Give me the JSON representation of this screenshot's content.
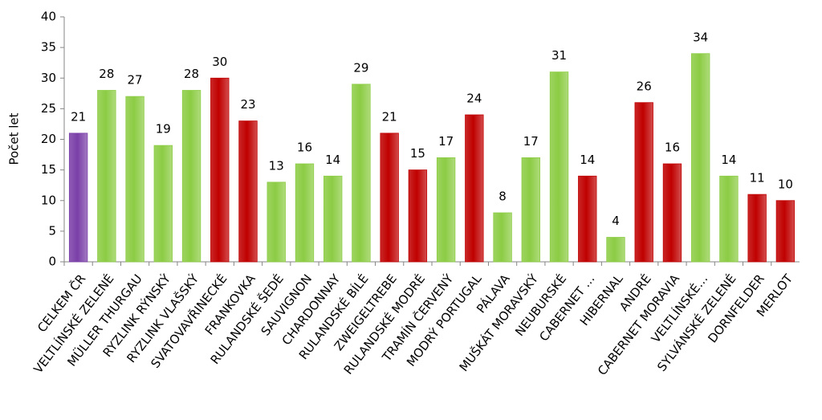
{
  "chart_data": {
    "type": "bar",
    "y_label": "Počet let",
    "categories": [
      "CELKEM ČR",
      "VELTLÍNSKÉ ZELENÉ",
      "MÜLLER THURGAU",
      "RYZLINK RÝNSKÝ",
      "RYZLINK VLAŠSKÝ",
      "SVATOVAVŘINECKÉ",
      "FRANKOVKA",
      "RULANDSKÉ ŠEDÉ",
      "SAUVIGNON",
      "CHARDONNAY",
      "RULANDSKÉ BÍLÉ",
      "ZWEIGELTREBE",
      "RULANDSKÉ MODRÉ",
      "TRAMÍN ČERVENÝ",
      "MODRÝ PORTUGAL",
      "PÁLAVA",
      "MUŠKÁT MORAVSKÝ",
      "NEUBURSKÉ",
      "CABERNET …",
      "HIBERNAL",
      "ANDRÉ",
      "CABERNET MORAVIA",
      "VELTLÍNSKÉ…",
      "SYLVÁNSKÉ ZELENÉ",
      "DORNFELDER",
      "MERLOT"
    ],
    "values": [
      21,
      28,
      27,
      19,
      28,
      30,
      23,
      13,
      16,
      14,
      29,
      21,
      15,
      17,
      24,
      8,
      17,
      31,
      14,
      4,
      26,
      16,
      34,
      14,
      11,
      10
    ],
    "colors": [
      "#7a3fa8",
      "#8ccc44",
      "#8ccc44",
      "#8ccc44",
      "#8ccc44",
      "#c00000",
      "#c00000",
      "#8ccc44",
      "#8ccc44",
      "#8ccc44",
      "#8ccc44",
      "#c00000",
      "#c00000",
      "#8ccc44",
      "#c00000",
      "#8ccc44",
      "#8ccc44",
      "#8ccc44",
      "#c00000",
      "#8ccc44",
      "#c00000",
      "#c00000",
      "#8ccc44",
      "#8ccc44",
      "#c00000",
      "#c00000"
    ],
    "ylim": [
      0,
      40
    ],
    "yticks": [
      0,
      5,
      10,
      15,
      20,
      25,
      30,
      35,
      40
    ],
    "grid": false
  }
}
